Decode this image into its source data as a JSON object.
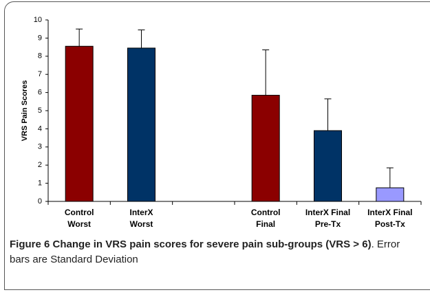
{
  "chart_data": {
    "type": "bar",
    "y_label": "VRS Pain Scores",
    "categories": [
      "Control Worst",
      "InterX Worst",
      null,
      "Control Final",
      "InterX Final Pre-Tx",
      "InterX Final Post-Tx"
    ],
    "values": [
      8.55,
      8.45,
      null,
      5.85,
      3.9,
      0.75
    ],
    "errors": [
      0.95,
      1.0,
      null,
      2.5,
      1.75,
      1.1
    ],
    "colors": [
      "#8b0000",
      "#003366",
      null,
      "#8b0000",
      "#003366",
      "#9999ff"
    ],
    "ylim": [
      0,
      10
    ],
    "yticks": [
      0,
      1,
      2,
      3,
      4,
      5,
      6,
      7,
      8,
      9,
      10
    ],
    "grid": false
  },
  "caption": {
    "label": "Figure 6",
    "title": "Change in VRS pain scores for severe pain sub-groups (VRS > 6)",
    "text": ". Error bars are Standard Deviation"
  }
}
